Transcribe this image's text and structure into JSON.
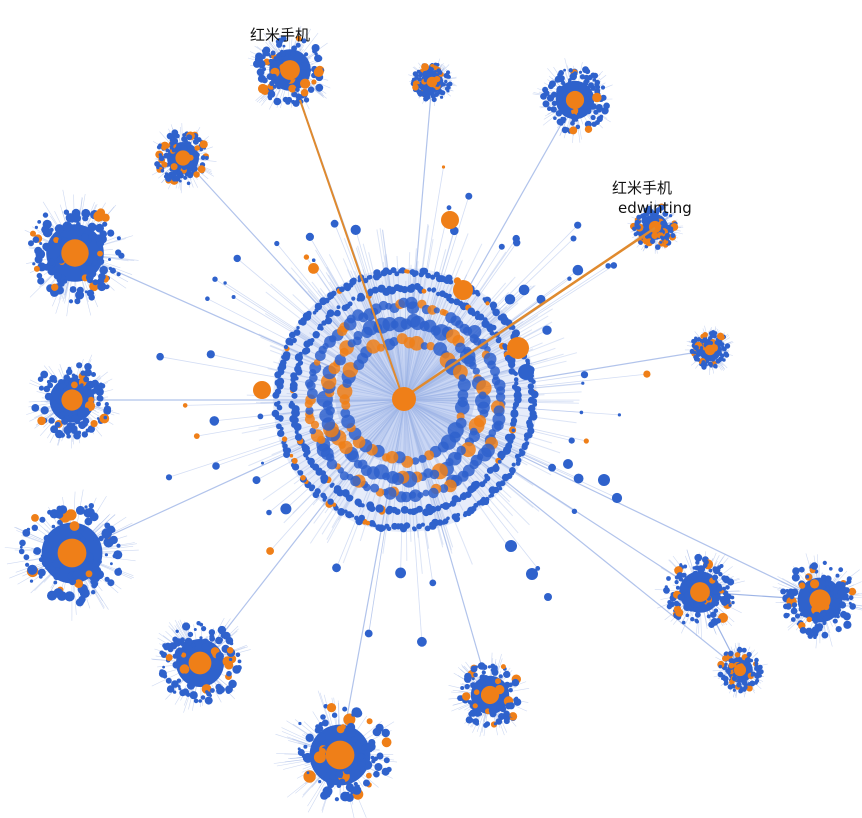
{
  "labels": {
    "top_cluster": "红米手机",
    "right_cluster_line1": "红米手机",
    "right_cluster_line2": "edwinting"
  },
  "colors": {
    "background": "#ffffff",
    "node_primary": "#2f62cc",
    "node_highlight": "#ef7f18",
    "edge": "#9db4e6",
    "edge_highlight": "#e08a2e",
    "hub_fill": "#c9d6f4"
  }
}
